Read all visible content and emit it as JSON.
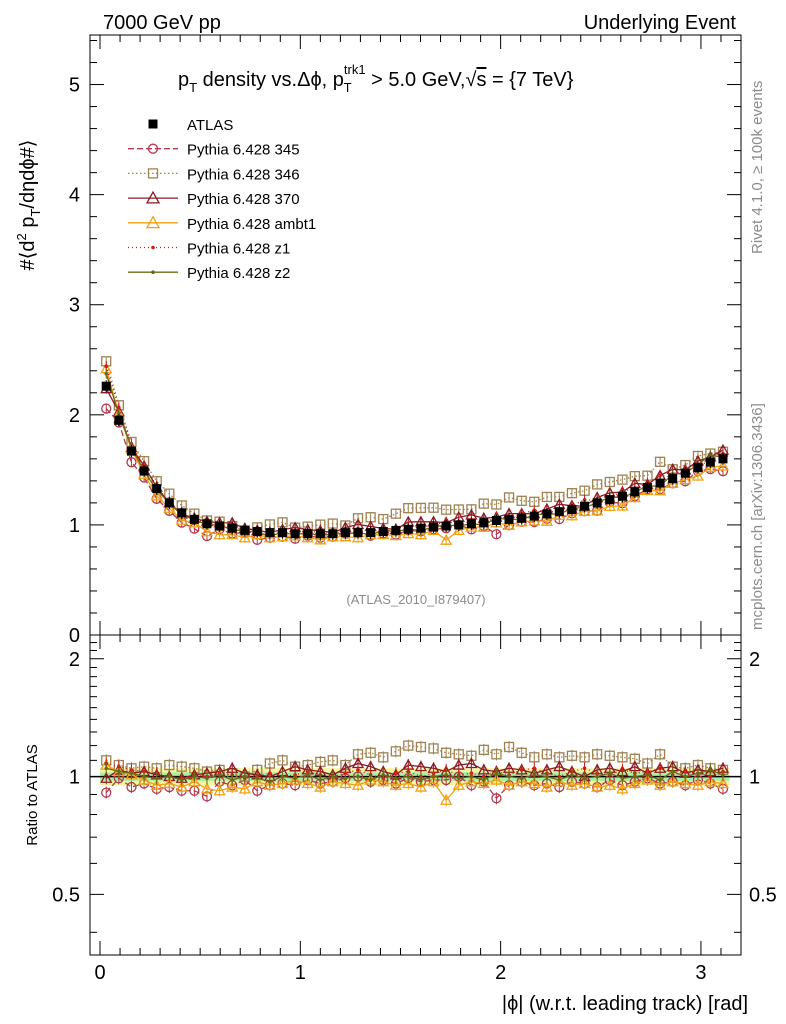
{
  "header": {
    "left": "7000 GeV pp",
    "right": "Underlying Event"
  },
  "side": {
    "rivet": "Rivet 4.1.0, ≥ 100k events",
    "mcplots": "mcplots.cern.ch [arXiv:1306.3436]"
  },
  "chart_data": {
    "type": "line",
    "title": "p_T density vs.Δϕ, p_T^trk1 > 5.0 GeV, √s = {7 TeV}",
    "title_parts": {
      "a": "p",
      "a_sub": "T",
      "b": " density vs.Δϕ, p",
      "b_sup": "trk1",
      "b_sub": "T",
      "c": " > 5.0 GeV,",
      "sqrt": "√",
      "d": "s",
      "e": " = {7 TeV}"
    },
    "ylabel": "#⟨d² p_T/dηdϕ#⟩",
    "ylabel_parts": {
      "a": "#⟨d",
      "sup": "2",
      "b": " p",
      "sub": "T",
      "c": "/dηdϕ#⟩"
    },
    "xlabel": "|ϕ| (w.r.t. leading track) [rad]",
    "ratio_ylabel": "Ratio to ATLAS",
    "watermark": "(ATLAS_2010_I879407)",
    "xlim": [
      -0.05,
      3.2
    ],
    "ylim": [
      0,
      5.45
    ],
    "ratio_ylim": [
      0.35,
      2.3
    ],
    "x_ticks": [
      "0",
      "1",
      "2",
      "3"
    ],
    "x_tick_values": [
      0,
      1,
      2,
      3
    ],
    "y_ticks": [
      "1",
      "2",
      "3",
      "4",
      "5"
    ],
    "y_tick_values": [
      1,
      2,
      3,
      4,
      5
    ],
    "y_zero_label": "0",
    "ratio_ticks": [
      "0.5",
      "1",
      "2"
    ],
    "ratio_tick_values": [
      0.5,
      1,
      2
    ],
    "x": [
      0.031,
      0.094,
      0.157,
      0.22,
      0.283,
      0.346,
      0.408,
      0.471,
      0.534,
      0.597,
      0.66,
      0.723,
      0.785,
      0.848,
      0.911,
      0.974,
      1.037,
      1.1,
      1.162,
      1.225,
      1.288,
      1.351,
      1.414,
      1.477,
      1.539,
      1.602,
      1.665,
      1.728,
      1.791,
      1.854,
      1.916,
      1.979,
      2.042,
      2.105,
      2.168,
      2.231,
      2.293,
      2.356,
      2.419,
      2.482,
      2.545,
      2.608,
      2.67,
      2.733,
      2.796,
      2.859,
      2.922,
      2.985,
      3.047,
      3.11
    ],
    "atlas": [
      2.26,
      1.95,
      1.67,
      1.49,
      1.33,
      1.2,
      1.11,
      1.05,
      1.01,
      0.99,
      0.97,
      0.95,
      0.94,
      0.93,
      0.93,
      0.92,
      0.92,
      0.92,
      0.92,
      0.93,
      0.93,
      0.93,
      0.94,
      0.95,
      0.96,
      0.97,
      0.98,
      0.99,
      1.0,
      1.01,
      1.02,
      1.04,
      1.05,
      1.06,
      1.08,
      1.1,
      1.12,
      1.14,
      1.17,
      1.2,
      1.23,
      1.26,
      1.3,
      1.34,
      1.38,
      1.42,
      1.47,
      1.52,
      1.57,
      1.6
    ],
    "series": [
      {
        "name": "Pythia 6.428 345",
        "color": "#b33a4e",
        "marker": "circle",
        "dash": "6,3",
        "ratio": [
          0.91,
          0.99,
          0.94,
          0.96,
          0.93,
          0.94,
          0.92,
          0.92,
          0.89,
          0.97,
          0.95,
          0.98,
          0.92,
          0.95,
          0.96,
          0.95,
          0.98,
          0.96,
          0.97,
          0.99,
          1.0,
          0.97,
          0.98,
          0.96,
          0.99,
          0.97,
          0.98,
          0.98,
          1.0,
          0.95,
          0.97,
          0.88,
          0.95,
          0.97,
          0.95,
          0.96,
          0.94,
          0.97,
          0.96,
          0.94,
          0.98,
          0.95,
          0.97,
          0.99,
          0.96,
          0.97,
          0.95,
          0.98,
          0.96,
          0.93
        ]
      },
      {
        "name": "Pythia 6.428 346",
        "color": "#a08250",
        "marker": "square",
        "dash": "1.5,2.5",
        "ratio": [
          1.1,
          1.07,
          1.05,
          1.06,
          1.05,
          1.07,
          1.06,
          1.05,
          1.03,
          1.04,
          1.02,
          1.0,
          1.04,
          1.08,
          1.1,
          1.06,
          1.07,
          1.09,
          1.1,
          1.07,
          1.14,
          1.15,
          1.12,
          1.16,
          1.2,
          1.19,
          1.18,
          1.15,
          1.14,
          1.13,
          1.17,
          1.14,
          1.19,
          1.15,
          1.12,
          1.14,
          1.12,
          1.13,
          1.12,
          1.14,
          1.13,
          1.12,
          1.11,
          1.08,
          1.14,
          1.06,
          1.05,
          1.07,
          1.05,
          1.04
        ]
      },
      {
        "name": "Pythia 6.428 370",
        "color": "#8c1a24",
        "marker": "triangle",
        "dash": "",
        "ratio": [
          0.99,
          1.04,
          1.02,
          1.03,
          1.01,
          1.0,
          0.99,
          1.01,
          1.02,
          1.03,
          1.05,
          1.02,
          1.01,
          1.0,
          1.03,
          1.06,
          1.04,
          1.03,
          1.01,
          1.05,
          1.08,
          1.06,
          1.03,
          1.01,
          1.07,
          1.06,
          1.05,
          1.03,
          1.07,
          1.08,
          1.04,
          1.03,
          1.05,
          1.04,
          1.02,
          1.04,
          1.06,
          1.03,
          1.0,
          1.04,
          1.05,
          1.03,
          1.06,
          1.02,
          1.05,
          1.06,
          1.02,
          1.04,
          1.03,
          1.05
        ]
      },
      {
        "name": "Pythia 6.428 ambt1",
        "color": "#f0a014",
        "marker": "triangle",
        "dash": "",
        "ratio": [
          1.07,
          1.03,
          1.01,
          0.98,
          0.95,
          0.96,
          0.94,
          0.97,
          0.93,
          0.92,
          0.94,
          0.93,
          0.97,
          0.95,
          0.96,
          0.98,
          0.96,
          0.94,
          0.97,
          0.96,
          0.95,
          0.98,
          0.97,
          0.95,
          0.96,
          0.94,
          0.97,
          0.87,
          0.95,
          0.97,
          0.96,
          0.98,
          0.95,
          0.97,
          0.96,
          0.94,
          0.97,
          0.95,
          0.96,
          0.94,
          0.95,
          0.93,
          0.96,
          0.98,
          0.95,
          0.97,
          0.96,
          0.95,
          0.97,
          0.96
        ]
      },
      {
        "name": "Pythia 6.428 z1",
        "color": "#cc1a1a",
        "marker": "dot",
        "dash": "1,3",
        "ratio": [
          1.08,
          1.06,
          1.04,
          1.03,
          1.02,
          1.0,
          0.99,
          1.01,
          1.0,
          1.02,
          1.01,
          0.99,
          1.0,
          1.02,
          1.0,
          1.01,
          1.03,
          1.01,
          1.0,
          1.02,
          1.04,
          1.01,
          0.99,
          1.02,
          1.03,
          1.0,
          1.02,
          1.04,
          1.01,
          1.02,
          1.0,
          1.03,
          1.01,
          1.04,
          1.05,
          1.02,
          1.0,
          1.03,
          1.05,
          1.02,
          1.01,
          1.04,
          1.02,
          1.03,
          1.05,
          1.01,
          1.03,
          1.02,
          1.0,
          1.03
        ]
      },
      {
        "name": "Pythia 6.428 z2",
        "color": "#6b6b12",
        "marker": "dot",
        "dash": "",
        "ratio": [
          1.05,
          1.03,
          1.02,
          1.0,
          0.99,
          1.0,
          0.98,
          1.0,
          0.99,
          1.01,
          0.98,
          1.0,
          0.99,
          0.97,
          1.0,
          0.99,
          1.01,
          0.98,
          1.0,
          0.99,
          1.0,
          0.98,
          1.01,
          0.99,
          1.0,
          0.98,
          1.0,
          1.01,
          0.99,
          1.0,
          0.98,
          1.02,
          1.0,
          0.99,
          1.01,
          1.0,
          0.98,
          1.01,
          0.99,
          1.0,
          1.02,
          0.99,
          1.0,
          1.01,
          0.98,
          1.03,
          1.0,
          1.02,
          1.04,
          1.01
        ]
      }
    ],
    "legend": [
      "ATLAS",
      "Pythia 6.428 345",
      "Pythia 6.428 346",
      "Pythia 6.428 370",
      "Pythia 6.428 ambt1",
      "Pythia 6.428 z1",
      "Pythia 6.428 z2"
    ],
    "legend_position": "top-left"
  }
}
